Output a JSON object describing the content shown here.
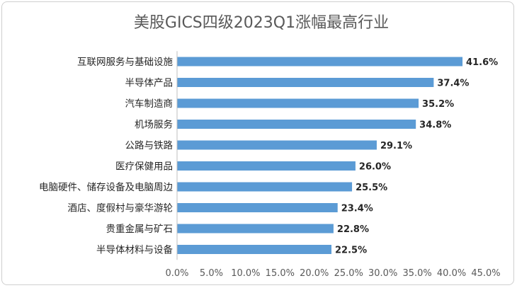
{
  "chart_data": {
    "type": "bar",
    "orientation": "horizontal",
    "title": "美股GICS四级2023Q1涨幅最高行业",
    "categories": [
      "互联网服务与基础设施",
      "半导体产品",
      "汽车制造商",
      "机场服务",
      "公路与铁路",
      "医疗保健用品",
      "电脑硬件、储存设备及电脑周边",
      "酒店、度假村与豪华游轮",
      "贵重金属与矿石",
      "半导体材料与设备"
    ],
    "values": [
      41.6,
      37.4,
      35.2,
      34.8,
      29.1,
      26.0,
      25.5,
      23.4,
      22.8,
      22.5
    ],
    "value_labels": [
      "41.6%",
      "37.4%",
      "35.2%",
      "34.8%",
      "29.1%",
      "26.0%",
      "25.5%",
      "23.4%",
      "22.8%",
      "22.5%"
    ],
    "x_ticks": [
      "0.0%",
      "5.0%",
      "10.0%",
      "15.0%",
      "20.0%",
      "25.0%",
      "30.0%",
      "35.0%",
      "40.0%",
      "45.0%"
    ],
    "xlim": [
      0,
      45
    ],
    "xlabel": "",
    "ylabel": "",
    "grid": false,
    "bar_color": "#5b9bd5"
  }
}
